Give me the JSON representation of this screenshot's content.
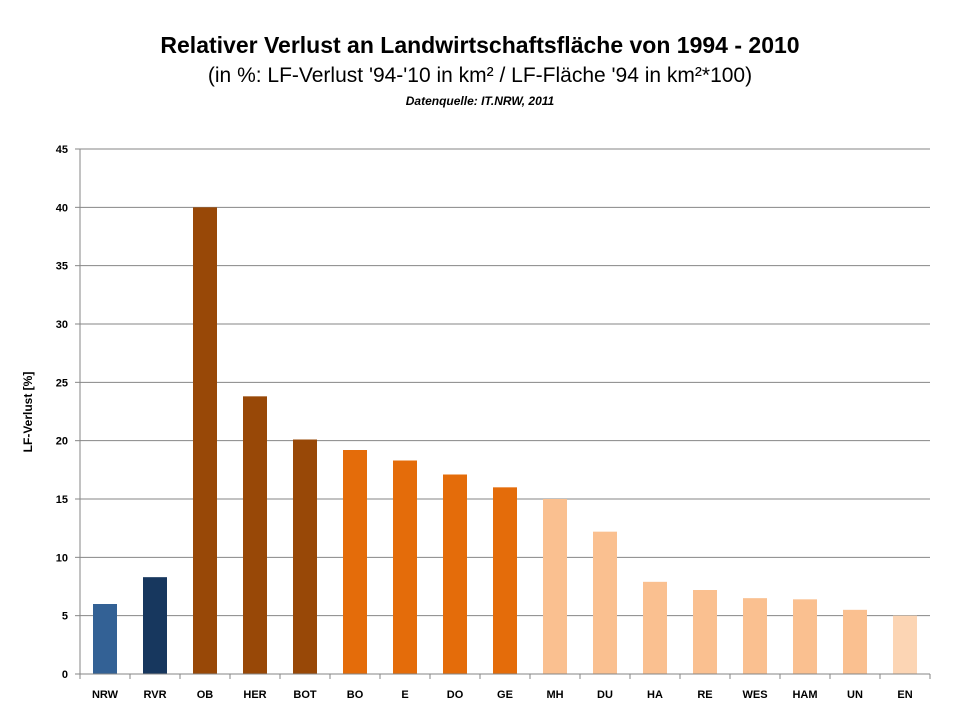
{
  "chart_data": {
    "type": "bar",
    "title": "Relativer Verlust an Landwirtschaftsfläche von 1994 - 2010",
    "subtitle": "(in %: LF-Verlust '94-'10 in km² / LF-Fläche '94 in km²*100)",
    "source": "Datenquelle: IT.NRW, 2011",
    "xlabel": "",
    "ylabel": "LF-Verlust [%]",
    "ylim": [
      0,
      45
    ],
    "yticks": [
      0,
      5,
      10,
      15,
      20,
      25,
      30,
      35,
      40,
      45
    ],
    "grid": true,
    "categories": [
      "NRW",
      "RVR",
      "OB",
      "HER",
      "BOT",
      "BO",
      "E",
      "DO",
      "GE",
      "MH",
      "DU",
      "HA",
      "RE",
      "WES",
      "HAM",
      "UN",
      "EN"
    ],
    "values": [
      6.0,
      8.3,
      40.0,
      23.8,
      20.1,
      19.2,
      18.3,
      17.1,
      16.0,
      15.0,
      12.2,
      7.9,
      7.2,
      6.5,
      6.4,
      5.5,
      5.0
    ],
    "colors": [
      "#336195",
      "#17375e",
      "#984807",
      "#984807",
      "#984807",
      "#e46c0a",
      "#e46c0a",
      "#e46c0a",
      "#e46c0a",
      "#fac090",
      "#fac090",
      "#fac090",
      "#fac090",
      "#fac090",
      "#fac090",
      "#fac090",
      "#fcd5b4"
    ]
  }
}
